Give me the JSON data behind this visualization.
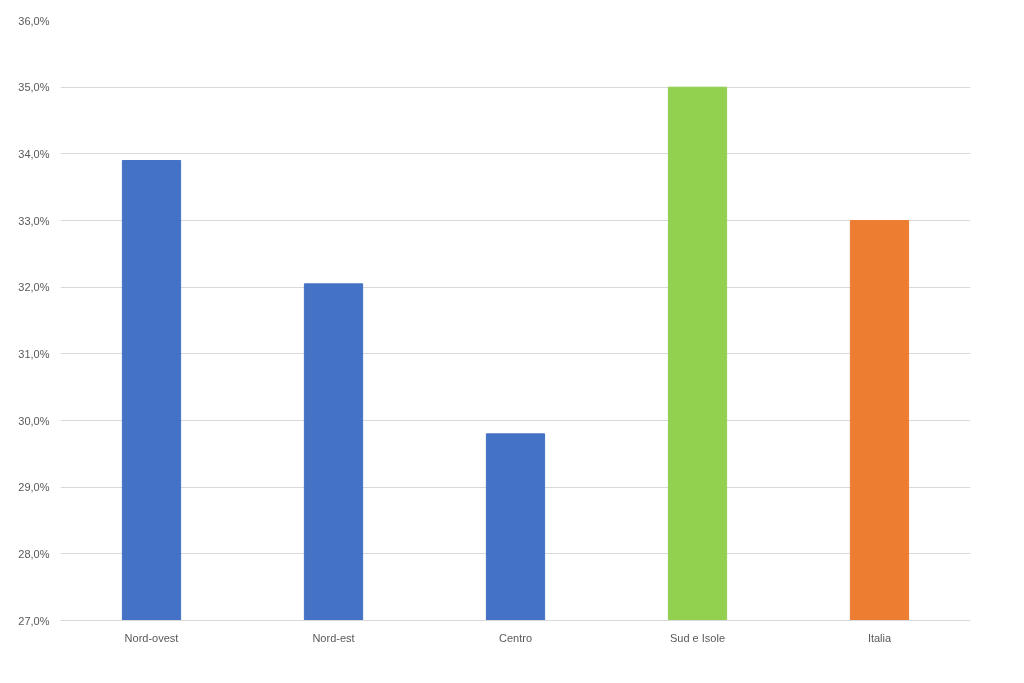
{
  "chart_data": {
    "type": "bar",
    "categories": [
      "Nord-ovest",
      "Nord-est",
      "Centro",
      "Sud e Isole",
      "Italia"
    ],
    "values": [
      33.9,
      32.05,
      29.8,
      35.0,
      33.0
    ],
    "colors": [
      "#4472c4",
      "#4472c4",
      "#4472c4",
      "#92d050",
      "#ed7d31"
    ],
    "ylim": [
      27,
      36
    ],
    "yticks": [
      {
        "value": 27,
        "label": "27,0%"
      },
      {
        "value": 28,
        "label": "28,0%"
      },
      {
        "value": 29,
        "label": "29,0%"
      },
      {
        "value": 30,
        "label": "30,0%"
      },
      {
        "value": 31,
        "label": "31,0%"
      },
      {
        "value": 32,
        "label": "32,0%"
      },
      {
        "value": 33,
        "label": "33,0%"
      },
      {
        "value": 34,
        "label": "34,0%"
      },
      {
        "value": 35,
        "label": "35,0%"
      },
      {
        "value": 36,
        "label": "36,0%"
      }
    ],
    "grid": "y"
  }
}
